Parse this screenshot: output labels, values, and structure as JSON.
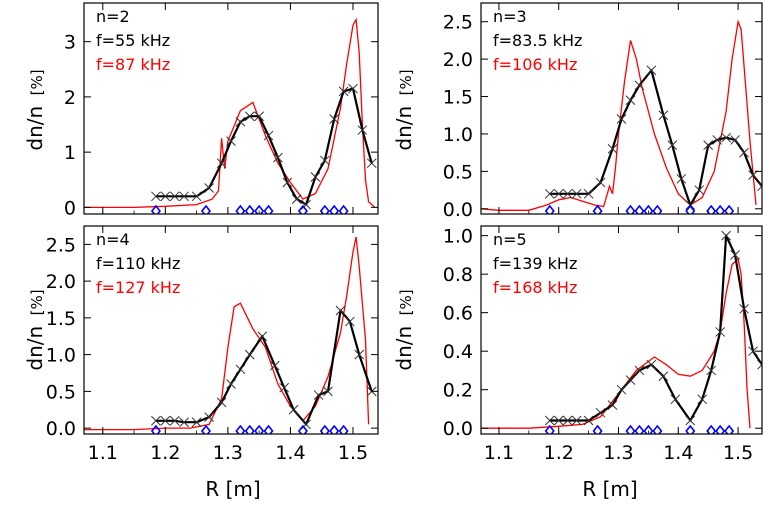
{
  "figure": {
    "xlabel": "R [m]",
    "ylabel_main": "dn/n",
    "ylabel_unit": "[%]"
  },
  "colors": {
    "measured": "#000000",
    "simulated": "#ff0000",
    "markers": "#0000ff"
  },
  "chart_data": [
    {
      "type": "line",
      "panel": "n=2",
      "xlim": [
        1.07,
        1.54
      ],
      "ylim": [
        -0.12,
        3.7
      ],
      "xticks": [
        1.1,
        1.2,
        1.3,
        1.4,
        1.5
      ],
      "yticks": [
        0,
        1,
        2,
        3
      ],
      "ytick_labels": [
        "0",
        "1",
        "2",
        "3"
      ],
      "annotations": [
        {
          "text": "n=2",
          "color": "#000000"
        },
        {
          "text": "f=55 kHz",
          "color": "#000000"
        },
        {
          "text": "f=87 kHz",
          "color": "#ff0000"
        }
      ],
      "series": [
        {
          "color": "#000000",
          "marker": "x",
          "x": [
            1.185,
            1.2,
            1.215,
            1.23,
            1.25,
            1.27,
            1.29,
            1.305,
            1.32,
            1.335,
            1.35,
            1.365,
            1.38,
            1.395,
            1.41,
            1.425,
            1.44,
            1.455,
            1.47,
            1.485,
            1.5,
            1.515,
            1.53
          ],
          "y": [
            0.2,
            0.2,
            0.2,
            0.2,
            0.2,
            0.35,
            0.8,
            1.2,
            1.55,
            1.65,
            1.65,
            1.3,
            0.9,
            0.45,
            0.15,
            0.05,
            0.55,
            0.85,
            1.6,
            2.1,
            2.15,
            1.4,
            0.8
          ]
        },
        {
          "color": "#ff0000",
          "x": [
            1.07,
            1.15,
            1.2,
            1.25,
            1.275,
            1.285,
            1.29,
            1.295,
            1.3,
            1.32,
            1.34,
            1.36,
            1.38,
            1.4,
            1.42,
            1.44,
            1.46,
            1.48,
            1.49,
            1.5,
            1.505,
            1.51,
            1.515,
            1.52,
            1.525,
            1.535
          ],
          "y": [
            0,
            0,
            0.02,
            0.05,
            0.15,
            0.3,
            1.25,
            0.7,
            1.2,
            1.75,
            1.9,
            1.3,
            0.8,
            0.45,
            0.15,
            0.25,
            0.7,
            1.8,
            2.6,
            3.3,
            3.4,
            2.8,
            1.5,
            0.5,
            0.1,
            0
          ]
        }
      ],
      "blue_markers_x": [
        1.185,
        1.265,
        1.32,
        1.335,
        1.35,
        1.365,
        1.42,
        1.455,
        1.47,
        1.485
      ]
    },
    {
      "type": "line",
      "panel": "n=3",
      "xlim": [
        1.07,
        1.54
      ],
      "ylim": [
        -0.07,
        2.75
      ],
      "xticks": [
        1.1,
        1.2,
        1.3,
        1.4,
        1.5
      ],
      "yticks": [
        0,
        0.5,
        1.0,
        1.5,
        2.0,
        2.5
      ],
      "ytick_labels": [
        "0.0",
        "0.5",
        "1.0",
        "1.5",
        "2.0",
        "2.5"
      ],
      "annotations": [
        {
          "text": "n=3",
          "color": "#000000"
        },
        {
          "text": "f=83.5 kHz",
          "color": "#000000"
        },
        {
          "text": "f=106 kHz",
          "color": "#ff0000"
        }
      ],
      "series": [
        {
          "color": "#000000",
          "marker": "x",
          "x": [
            1.185,
            1.2,
            1.215,
            1.23,
            1.25,
            1.27,
            1.29,
            1.305,
            1.32,
            1.335,
            1.355,
            1.375,
            1.39,
            1.405,
            1.42,
            1.435,
            1.45,
            1.465,
            1.48,
            1.495,
            1.51,
            1.525,
            1.54
          ],
          "y": [
            0.2,
            0.2,
            0.2,
            0.2,
            0.2,
            0.35,
            0.8,
            1.2,
            1.45,
            1.65,
            1.85,
            1.25,
            0.85,
            0.4,
            0.05,
            0.25,
            0.85,
            0.92,
            0.95,
            0.92,
            0.75,
            0.45,
            0.3
          ]
        },
        {
          "color": "#ff0000",
          "x": [
            1.07,
            1.1,
            1.15,
            1.18,
            1.2,
            1.22,
            1.24,
            1.26,
            1.275,
            1.285,
            1.29,
            1.295,
            1.3,
            1.31,
            1.32,
            1.33,
            1.34,
            1.36,
            1.38,
            1.4,
            1.42,
            1.44,
            1.46,
            1.48,
            1.49,
            1.5,
            1.505,
            1.51,
            1.52,
            1.53
          ],
          "y": [
            0,
            -0.02,
            -0.02,
            0.05,
            0.12,
            0.15,
            0.1,
            0.05,
            0.03,
            0.3,
            0.2,
            0.55,
            1.0,
            1.7,
            2.25,
            2.0,
            1.6,
            1.0,
            0.55,
            0.2,
            0.05,
            0.15,
            0.5,
            1.3,
            2.0,
            2.5,
            2.4,
            1.9,
            0.9,
            0.05
          ]
        }
      ],
      "blue_markers_x": [
        1.185,
        1.265,
        1.32,
        1.335,
        1.35,
        1.365,
        1.42,
        1.455,
        1.47,
        1.485
      ]
    },
    {
      "type": "line",
      "panel": "n=4",
      "xlim": [
        1.07,
        1.54
      ],
      "ylim": [
        -0.08,
        2.75
      ],
      "xticks": [
        1.1,
        1.2,
        1.3,
        1.4,
        1.5
      ],
      "yticks": [
        0,
        0.5,
        1.0,
        1.5,
        2.0,
        2.5
      ],
      "ytick_labels": [
        "0.0",
        "0.5",
        "1.0",
        "1.5",
        "2.0",
        "2.5"
      ],
      "annotations": [
        {
          "text": "n=4",
          "color": "#000000"
        },
        {
          "text": "f=110 kHz",
          "color": "#000000"
        },
        {
          "text": "f=127 kHz",
          "color": "#ff0000"
        }
      ],
      "series": [
        {
          "color": "#000000",
          "marker": "x",
          "x": [
            1.185,
            1.2,
            1.215,
            1.23,
            1.25,
            1.27,
            1.29,
            1.305,
            1.32,
            1.335,
            1.355,
            1.375,
            1.39,
            1.405,
            1.425,
            1.445,
            1.46,
            1.48,
            1.495,
            1.51,
            1.53
          ],
          "y": [
            0.1,
            0.1,
            0.1,
            0.08,
            0.08,
            0.15,
            0.35,
            0.6,
            0.8,
            1.0,
            1.25,
            0.85,
            0.55,
            0.25,
            0.05,
            0.45,
            0.5,
            1.6,
            1.45,
            1.0,
            0.5
          ]
        },
        {
          "color": "#ff0000",
          "x": [
            1.07,
            1.15,
            1.2,
            1.24,
            1.27,
            1.29,
            1.3,
            1.31,
            1.32,
            1.34,
            1.36,
            1.38,
            1.4,
            1.42,
            1.44,
            1.46,
            1.48,
            1.49,
            1.5,
            1.505,
            1.51,
            1.52,
            1.525
          ],
          "y": [
            -0.02,
            -0.02,
            0,
            0,
            0.05,
            0.4,
            1.1,
            1.65,
            1.7,
            1.35,
            1.1,
            0.6,
            0.3,
            0.1,
            0.3,
            0.7,
            1.3,
            1.8,
            2.4,
            2.6,
            2.2,
            1.2,
            0.05
          ]
        }
      ],
      "blue_markers_x": [
        1.185,
        1.265,
        1.32,
        1.335,
        1.35,
        1.365,
        1.42,
        1.455,
        1.47,
        1.485
      ]
    },
    {
      "type": "line",
      "panel": "n=5",
      "xlim": [
        1.07,
        1.54
      ],
      "ylim": [
        -0.03,
        1.05
      ],
      "xticks": [
        1.1,
        1.2,
        1.3,
        1.4,
        1.5
      ],
      "yticks": [
        0,
        0.2,
        0.4,
        0.6,
        0.8,
        1.0
      ],
      "ytick_labels": [
        "0.0",
        "0.2",
        "0.4",
        "0.6",
        "0.8",
        "1.0"
      ],
      "annotations": [
        {
          "text": "n=5",
          "color": "#000000"
        },
        {
          "text": "f=139 kHz",
          "color": "#000000"
        },
        {
          "text": "f=168 kHz",
          "color": "#ff0000"
        }
      ],
      "series": [
        {
          "color": "#000000",
          "marker": "x",
          "x": [
            1.185,
            1.2,
            1.215,
            1.23,
            1.25,
            1.27,
            1.29,
            1.305,
            1.32,
            1.335,
            1.355,
            1.375,
            1.395,
            1.42,
            1.44,
            1.455,
            1.47,
            1.48,
            1.495,
            1.51,
            1.525,
            1.54
          ],
          "y": [
            0.04,
            0.04,
            0.04,
            0.04,
            0.04,
            0.08,
            0.12,
            0.2,
            0.25,
            0.3,
            0.33,
            0.27,
            0.15,
            0.04,
            0.15,
            0.3,
            0.5,
            1.0,
            0.9,
            0.62,
            0.4,
            0.33
          ]
        },
        {
          "color": "#ff0000",
          "x": [
            1.07,
            1.15,
            1.2,
            1.24,
            1.27,
            1.3,
            1.33,
            1.36,
            1.38,
            1.4,
            1.42,
            1.44,
            1.46,
            1.47,
            1.48,
            1.49,
            1.5,
            1.505,
            1.51,
            1.515,
            1.52
          ],
          "y": [
            0,
            0,
            0.01,
            0.02,
            0.06,
            0.18,
            0.3,
            0.37,
            0.33,
            0.28,
            0.27,
            0.3,
            0.4,
            0.5,
            0.7,
            0.85,
            0.88,
            0.8,
            0.55,
            0.2,
            0
          ]
        }
      ],
      "blue_markers_x": [
        1.185,
        1.265,
        1.32,
        1.335,
        1.35,
        1.365,
        1.42,
        1.455,
        1.47,
        1.485
      ]
    }
  ]
}
